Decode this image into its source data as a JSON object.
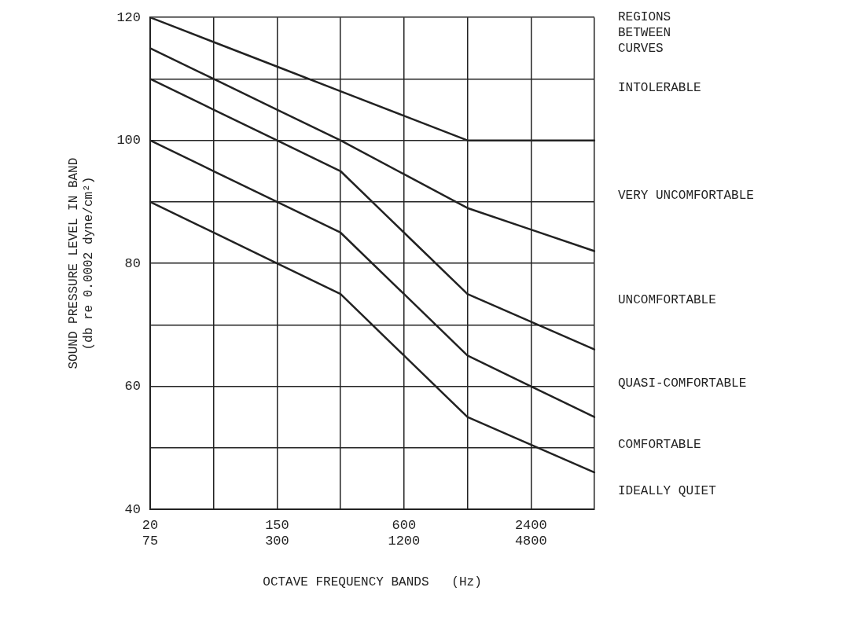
{
  "chart_data": {
    "type": "line",
    "xlabel": "OCTAVE FREQUENCY BANDS   (Hz)",
    "ylabel": "SOUND PRESSURE LEVEL IN BAND\n(db re 0.0002 dyne/cm²)",
    "categories": [
      "20\n75",
      null,
      "150\n300",
      null,
      "600\n1200",
      null,
      "2400\n4800",
      null
    ],
    "ylim": [
      40,
      120
    ],
    "yticks": [
      40,
      {
        "value": 50,
        "label": null
      },
      60,
      {
        "value": 70,
        "label": null
      },
      80,
      {
        "value": 90,
        "label": null
      },
      100,
      {
        "value": 110,
        "label": null
      },
      120
    ],
    "grid": true,
    "legend": false,
    "marker": "none",
    "line_style": "solid",
    "series": [
      {
        "color": "#222222",
        "values": [
          120,
          116,
          112,
          108,
          104,
          100,
          100,
          100
        ]
      },
      {
        "color": "#222222",
        "values": [
          115,
          110,
          105,
          100,
          94.5,
          89,
          85.5,
          82
        ]
      },
      {
        "color": "#222222",
        "values": [
          110,
          105,
          100,
          95,
          85,
          75,
          70.5,
          66
        ]
      },
      {
        "color": "#222222",
        "values": [
          100,
          95,
          90,
          85,
          75,
          65,
          60,
          55
        ]
      },
      {
        "color": "#222222",
        "values": [
          90,
          85,
          80,
          75,
          65,
          55,
          50.5,
          46
        ]
      }
    ],
    "annotations": [
      "REGIONS\nBETWEEN\nCURVES",
      "INTOLERABLE",
      "VERY UNCOMFORTABLE",
      "UNCOMFORTABLE",
      "QUASI-COMFORTABLE",
      "COMFORTABLE",
      "IDEALLY QUIET"
    ]
  }
}
